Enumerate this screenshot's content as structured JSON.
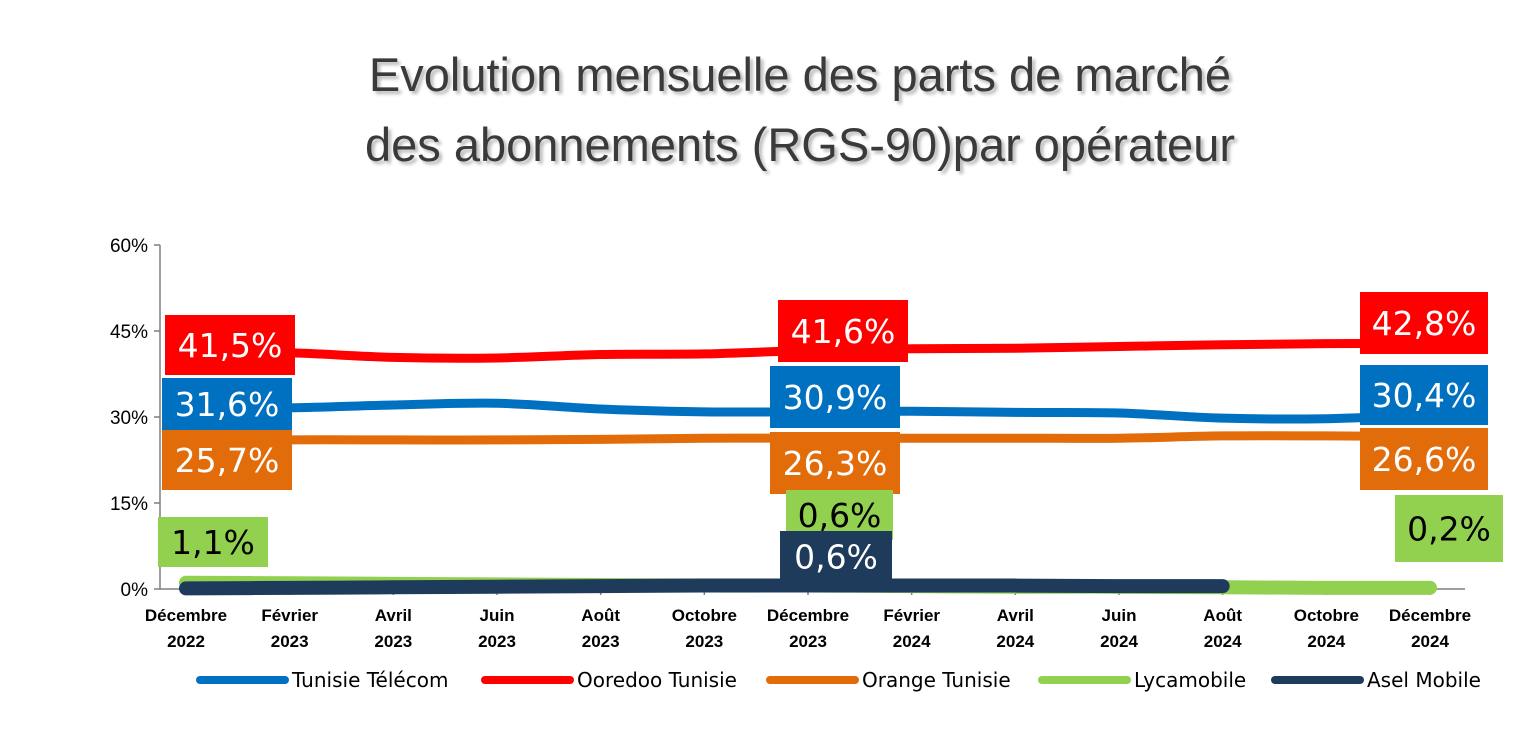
{
  "chart_data": {
    "type": "line",
    "title_lines": [
      "Evolution mensuelle des parts de marché",
      "des abonnements (RGS-90)par opérateur"
    ],
    "ylim": [
      0,
      60
    ],
    "yticks": [
      0,
      15,
      30,
      45,
      60
    ],
    "ytick_labels": [
      "0%",
      "15%",
      "30%",
      "45%",
      "60%"
    ],
    "categories": [
      [
        "Décembre",
        "2022"
      ],
      [
        "Février",
        "2023"
      ],
      [
        "Avril",
        "2023"
      ],
      [
        "Juin",
        "2023"
      ],
      [
        "Août",
        "2023"
      ],
      [
        "Octobre",
        "2023"
      ],
      [
        "Décembre",
        "2023"
      ],
      [
        "Février",
        "2024"
      ],
      [
        "Avril",
        "2024"
      ],
      [
        "Juin",
        "2024"
      ],
      [
        "Août",
        "2024"
      ],
      [
        "Octobre",
        "2024"
      ],
      [
        "Décembre",
        "2024"
      ]
    ],
    "series": [
      {
        "name": "Tunisie Télécom",
        "color": "#0070C0",
        "values": [
          31.6,
          31.6,
          32.1,
          32.4,
          31.4,
          30.9,
          30.9,
          31.0,
          30.8,
          30.7,
          29.8,
          29.7,
          30.4
        ],
        "labels": [
          {
            "index": 0,
            "text": "31,6%"
          },
          {
            "index": 6,
            "text": "30,9%"
          },
          {
            "index": 12,
            "text": "30,4%"
          }
        ]
      },
      {
        "name": "Ooredoo Tunisie",
        "color": "#FF0000",
        "values": [
          41.5,
          41.2,
          40.4,
          40.3,
          40.9,
          41.0,
          41.6,
          41.9,
          42.0,
          42.3,
          42.6,
          42.8,
          42.8
        ],
        "labels": [
          {
            "index": 0,
            "text": "41,5%"
          },
          {
            "index": 6,
            "text": "41,6%"
          },
          {
            "index": 12,
            "text": "42,8%"
          }
        ]
      },
      {
        "name": "Orange Tunisie",
        "color": "#E36C0A",
        "values": [
          25.7,
          26.0,
          26.0,
          26.0,
          26.1,
          26.3,
          26.3,
          26.3,
          26.3,
          26.3,
          26.7,
          26.7,
          26.6
        ],
        "labels": [
          {
            "index": 0,
            "text": "25,7%"
          },
          {
            "index": 6,
            "text": "26,3%"
          },
          {
            "index": 12,
            "text": "26,6%"
          }
        ]
      },
      {
        "name": "Lycamobile",
        "color": "#92D050",
        "values": [
          1.1,
          1.0,
          0.9,
          0.8,
          0.7,
          0.6,
          0.6,
          0.5,
          0.4,
          0.4,
          0.3,
          0.2,
          0.2
        ],
        "labels": [
          {
            "index": 0,
            "text": "1,1%"
          },
          {
            "index": 6,
            "text": "0,6%"
          },
          {
            "index": 12,
            "text": "0,2%"
          }
        ]
      },
      {
        "name": "Asel Mobile",
        "color": "#1F3B5C",
        "values": [
          0.1,
          0.2,
          0.3,
          0.4,
          0.5,
          0.6,
          0.6,
          0.6,
          0.6,
          0.5,
          0.5,
          null,
          null
        ],
        "labels": [
          {
            "index": 6,
            "text": "0,6%"
          }
        ]
      }
    ],
    "legend_position": "bottom",
    "grid": false
  }
}
